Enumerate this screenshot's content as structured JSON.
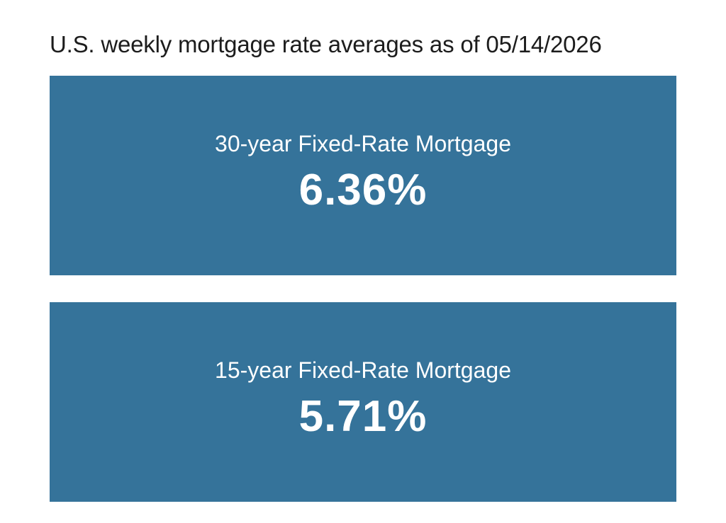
{
  "header": {
    "title": "U.S. weekly mortgage rate averages as of 05/14/2026"
  },
  "cards": [
    {
      "label": "30-year Fixed-Rate Mortgage",
      "rate": "6.36%"
    },
    {
      "label": "15-year Fixed-Rate Mortgage",
      "rate": "5.71%"
    }
  ],
  "colors": {
    "card_background": "#35739a",
    "card_text": "#ffffff",
    "title_text": "#1c1c1c"
  }
}
